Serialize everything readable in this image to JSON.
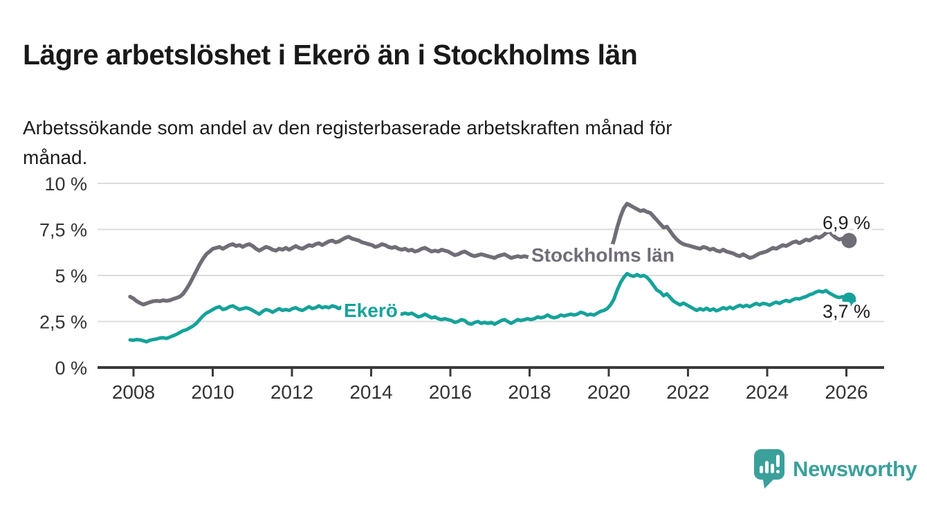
{
  "title": "Lägre arbetslöshet i Ekerö än i Stockholms län",
  "subtitle_lines": [
    "Arbetssökande som andel av den registerbaserade arbetskraften månad för",
    "månad."
  ],
  "branding": {
    "name": "Newsworthy",
    "logo_icon": "speech-bubble-bar-chart-icon",
    "color": "#3ba09a"
  },
  "chart_data": {
    "type": "line",
    "x_start": "2008-01",
    "x_end": "2026-02",
    "x_months_per_point": 1,
    "grid": true,
    "ylim": [
      0,
      10
    ],
    "y_ticks": [
      {
        "value": 0,
        "label": "0 %"
      },
      {
        "value": 2.5,
        "label": "2,5 %"
      },
      {
        "value": 5,
        "label": "5 %"
      },
      {
        "value": 7.5,
        "label": "7,5 %"
      },
      {
        "value": 10,
        "label": "10 %"
      }
    ],
    "x_ticks": [
      {
        "year": 2008,
        "label": "2008"
      },
      {
        "year": 2010,
        "label": "2010"
      },
      {
        "year": 2012,
        "label": "2012"
      },
      {
        "year": 2014,
        "label": "2014"
      },
      {
        "year": 2016,
        "label": "2016"
      },
      {
        "year": 2018,
        "label": "2018"
      },
      {
        "year": 2020,
        "label": "2020"
      },
      {
        "year": 2022,
        "label": "2022"
      },
      {
        "year": 2024,
        "label": "2024"
      },
      {
        "year": 2026,
        "label": "2026"
      }
    ],
    "series": [
      {
        "name": "Stockholms län",
        "color": "#716d76",
        "end_value": 6.9,
        "end_label": "6,9 %",
        "values": [
          3.85,
          3.75,
          3.6,
          3.5,
          3.42,
          3.48,
          3.55,
          3.6,
          3.62,
          3.6,
          3.65,
          3.62,
          3.65,
          3.72,
          3.78,
          3.85,
          4.0,
          4.25,
          4.55,
          4.9,
          5.25,
          5.6,
          5.9,
          6.15,
          6.3,
          6.45,
          6.5,
          6.55,
          6.45,
          6.55,
          6.65,
          6.7,
          6.6,
          6.65,
          6.55,
          6.65,
          6.7,
          6.6,
          6.45,
          6.35,
          6.45,
          6.55,
          6.5,
          6.4,
          6.35,
          6.45,
          6.4,
          6.5,
          6.4,
          6.5,
          6.6,
          6.5,
          6.45,
          6.55,
          6.65,
          6.6,
          6.7,
          6.75,
          6.65,
          6.75,
          6.85,
          6.9,
          6.8,
          6.85,
          6.95,
          7.05,
          7.1,
          7.0,
          6.95,
          6.9,
          6.8,
          6.75,
          6.7,
          6.65,
          6.55,
          6.6,
          6.7,
          6.65,
          6.55,
          6.5,
          6.55,
          6.45,
          6.4,
          6.45,
          6.35,
          6.4,
          6.3,
          6.35,
          6.45,
          6.5,
          6.4,
          6.3,
          6.35,
          6.3,
          6.4,
          6.35,
          6.3,
          6.2,
          6.1,
          6.15,
          6.25,
          6.3,
          6.2,
          6.1,
          6.05,
          6.1,
          6.15,
          6.1,
          6.05,
          6.0,
          5.95,
          6.05,
          6.1,
          6.15,
          6.05,
          5.95,
          6.0,
          6.05,
          6.0,
          6.05,
          6.0,
          5.95,
          6.0,
          6.05,
          6.0,
          6.05,
          5.95,
          6.0,
          5.95,
          6.0,
          6.05,
          6.0,
          5.95,
          6.0,
          6.05,
          6.0,
          6.05,
          6.1,
          6.05,
          6.0,
          6.05,
          6.1,
          6.15,
          6.2,
          6.3,
          6.4,
          6.9,
          7.6,
          8.2,
          8.65,
          8.9,
          8.8,
          8.7,
          8.6,
          8.5,
          8.55,
          8.45,
          8.4,
          8.2,
          8.0,
          7.8,
          7.6,
          7.65,
          7.4,
          7.15,
          6.95,
          6.8,
          6.7,
          6.65,
          6.6,
          6.55,
          6.5,
          6.45,
          6.55,
          6.5,
          6.4,
          6.45,
          6.35,
          6.3,
          6.4,
          6.3,
          6.25,
          6.2,
          6.1,
          6.05,
          6.15,
          6.05,
          5.95,
          6.0,
          6.1,
          6.2,
          6.25,
          6.3,
          6.4,
          6.5,
          6.45,
          6.55,
          6.65,
          6.6,
          6.7,
          6.8,
          6.85,
          6.75,
          6.85,
          6.95,
          6.9,
          7.0,
          7.1,
          7.05,
          7.15,
          7.3,
          7.4,
          7.2,
          7.05,
          6.95,
          7.0,
          6.95,
          6.9
        ]
      },
      {
        "name": "Ekerö",
        "color": "#15a29a",
        "end_value": 3.7,
        "end_label": "3,7 %",
        "values": [
          1.5,
          1.48,
          1.52,
          1.5,
          1.45,
          1.4,
          1.48,
          1.52,
          1.55,
          1.6,
          1.62,
          1.58,
          1.65,
          1.72,
          1.8,
          1.9,
          2.0,
          2.05,
          2.15,
          2.25,
          2.4,
          2.6,
          2.8,
          2.95,
          3.05,
          3.15,
          3.25,
          3.3,
          3.15,
          3.2,
          3.3,
          3.35,
          3.25,
          3.15,
          3.2,
          3.25,
          3.2,
          3.1,
          3.0,
          2.9,
          3.05,
          3.15,
          3.1,
          3.0,
          3.1,
          3.2,
          3.1,
          3.15,
          3.1,
          3.2,
          3.25,
          3.15,
          3.1,
          3.2,
          3.3,
          3.2,
          3.25,
          3.35,
          3.25,
          3.3,
          3.25,
          3.35,
          3.3,
          3.2,
          3.3,
          3.4,
          3.3,
          3.25,
          3.35,
          3.25,
          3.2,
          3.25,
          3.2,
          3.3,
          3.25,
          3.15,
          3.05,
          3.15,
          3.1,
          3.0,
          3.05,
          2.95,
          2.9,
          2.95,
          2.9,
          2.95,
          2.85,
          2.75,
          2.8,
          2.9,
          2.8,
          2.7,
          2.75,
          2.65,
          2.6,
          2.65,
          2.6,
          2.55,
          2.45,
          2.5,
          2.6,
          2.55,
          2.4,
          2.35,
          2.45,
          2.5,
          2.4,
          2.45,
          2.4,
          2.45,
          2.35,
          2.45,
          2.55,
          2.6,
          2.5,
          2.4,
          2.5,
          2.6,
          2.55,
          2.6,
          2.65,
          2.6,
          2.65,
          2.75,
          2.7,
          2.75,
          2.85,
          2.75,
          2.7,
          2.75,
          2.85,
          2.8,
          2.85,
          2.9,
          2.85,
          2.9,
          3.0,
          2.95,
          2.85,
          2.9,
          2.85,
          2.95,
          3.05,
          3.1,
          3.2,
          3.4,
          3.7,
          4.2,
          4.6,
          4.9,
          5.1,
          5.0,
          4.95,
          5.05,
          4.95,
          5.0,
          4.9,
          4.7,
          4.45,
          4.2,
          4.1,
          3.9,
          4.0,
          3.8,
          3.6,
          3.5,
          3.4,
          3.5,
          3.4,
          3.3,
          3.2,
          3.1,
          3.2,
          3.12,
          3.22,
          3.1,
          3.18,
          3.08,
          3.15,
          3.25,
          3.18,
          3.28,
          3.2,
          3.3,
          3.38,
          3.3,
          3.38,
          3.3,
          3.4,
          3.48,
          3.4,
          3.48,
          3.45,
          3.38,
          3.48,
          3.55,
          3.48,
          3.58,
          3.65,
          3.58,
          3.68,
          3.75,
          3.72,
          3.8,
          3.85,
          3.95,
          4.0,
          4.1,
          4.15,
          4.1,
          4.18,
          4.05,
          3.95,
          3.85,
          3.8,
          3.85,
          3.75,
          3.7
        ]
      }
    ]
  }
}
